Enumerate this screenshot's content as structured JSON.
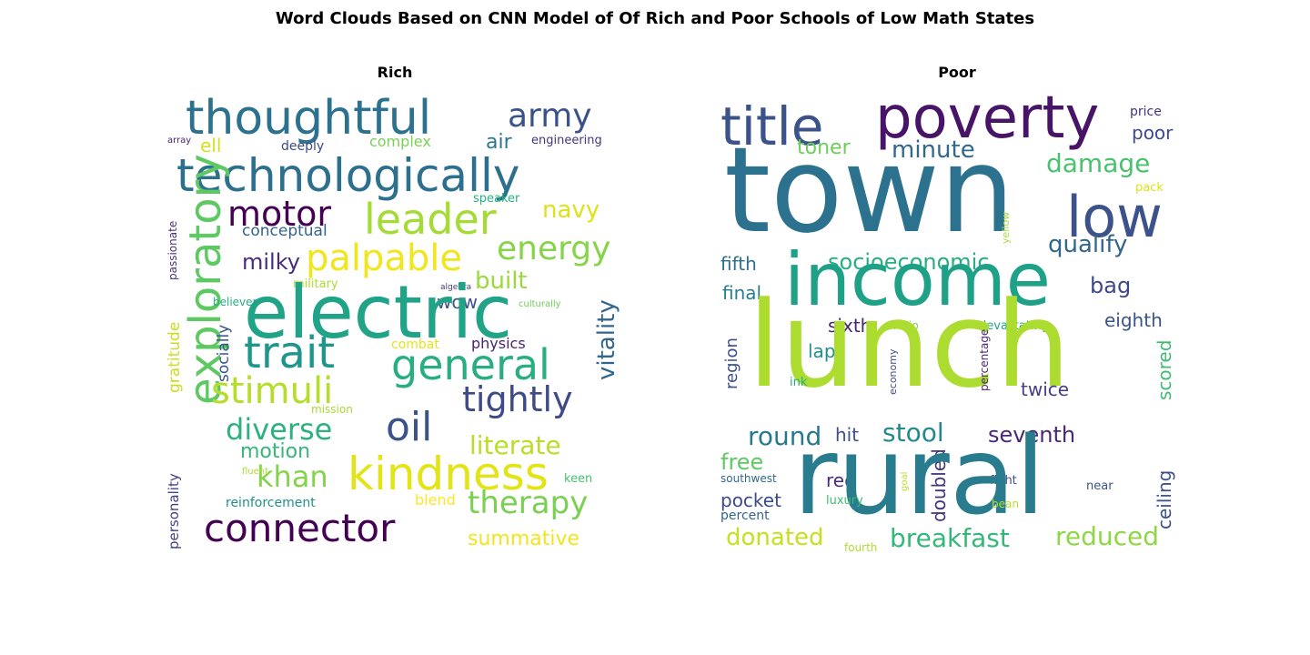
{
  "title": "Word Clouds Based on CNN Model of Of Rich and Poor Schools of Low Math States",
  "panels": [
    {
      "title": "Rich",
      "words": [
        {
          "t": "thoughtful",
          "c": "#2c728e"
        },
        {
          "t": "army",
          "c": "#3b528b"
        },
        {
          "t": "ell",
          "c": "#d2e21b"
        },
        {
          "t": "deeply",
          "c": "#3e4989"
        },
        {
          "t": "complex",
          "c": "#7ad151"
        },
        {
          "t": "air",
          "c": "#2a788e"
        },
        {
          "t": "engineering",
          "c": "#46337e"
        },
        {
          "t": "array",
          "c": "#482878"
        },
        {
          "t": "technologically",
          "c": "#2d708e"
        },
        {
          "t": "passionate",
          "c": "#46327e"
        },
        {
          "t": "speaker",
          "c": "#2ab07f"
        },
        {
          "t": "exploratory",
          "c": "#5ec962"
        },
        {
          "t": "motor",
          "c": "#440154"
        },
        {
          "t": "leader",
          "c": "#a5db36"
        },
        {
          "t": "navy",
          "c": "#dde318"
        },
        {
          "t": "culturally",
          "c": "#6ece58"
        },
        {
          "t": "energy",
          "c": "#86d549"
        },
        {
          "t": "conceptual",
          "c": "#33638d"
        },
        {
          "t": "milky",
          "c": "#472d7b"
        },
        {
          "t": "palpable",
          "c": "#f1e51d"
        },
        {
          "t": "wow",
          "c": "#3b528b"
        },
        {
          "t": "built",
          "c": "#9bd93c"
        },
        {
          "t": "believer",
          "c": "#25ac82"
        },
        {
          "t": "algebra",
          "c": "#443a83"
        },
        {
          "t": "vitality",
          "c": "#31668e"
        },
        {
          "t": "military",
          "c": "#addc30"
        },
        {
          "t": "electric",
          "c": "#20a386"
        },
        {
          "t": "gratitude",
          "c": "#c8e020"
        },
        {
          "t": "socially",
          "c": "#39558c"
        },
        {
          "t": "trait",
          "c": "#1f968b"
        },
        {
          "t": "combat",
          "c": "#e5e419"
        },
        {
          "t": "physics",
          "c": "#482374"
        },
        {
          "t": "general",
          "c": "#28ae80"
        },
        {
          "t": "stimuli",
          "c": "#b5de2b"
        },
        {
          "t": "tightly",
          "c": "#3e4a89"
        },
        {
          "t": "mission",
          "c": "#a8db34"
        },
        {
          "t": "diverse",
          "c": "#2db27d"
        },
        {
          "t": "oil",
          "c": "#3b528b"
        },
        {
          "t": "personality",
          "c": "#424086"
        },
        {
          "t": "literate",
          "c": "#bade28"
        },
        {
          "t": "motion",
          "c": "#35b779"
        },
        {
          "t": "khan",
          "c": "#84d44b"
        },
        {
          "t": "kindness",
          "c": "#e2e418"
        },
        {
          "t": "fluent",
          "c": "#addc30"
        },
        {
          "t": "keen",
          "c": "#4ac16d"
        },
        {
          "t": "reinforcement",
          "c": "#218f8d"
        },
        {
          "t": "blend",
          "c": "#fde725"
        },
        {
          "t": "therapy",
          "c": "#7ad151"
        },
        {
          "t": "connector",
          "c": "#440154"
        },
        {
          "t": "summative",
          "c": "#f1e51d"
        }
      ]
    },
    {
      "title": "Poor",
      "words": [
        {
          "t": "title",
          "c": "#3b528b"
        },
        {
          "t": "poverty",
          "c": "#481467"
        },
        {
          "t": "price",
          "c": "#46337e"
        },
        {
          "t": "poor",
          "c": "#3e4a89"
        },
        {
          "t": "toner",
          "c": "#6ece58"
        },
        {
          "t": "minute",
          "c": "#31688e"
        },
        {
          "t": "damage",
          "c": "#4ac16d"
        },
        {
          "t": "town",
          "c": "#2c728e"
        },
        {
          "t": "pack",
          "c": "#dde318"
        },
        {
          "t": "low",
          "c": "#3b528b"
        },
        {
          "t": "yellow",
          "c": "#a8db34"
        },
        {
          "t": "qualify",
          "c": "#31678e"
        },
        {
          "t": "fifth",
          "c": "#2e6f8e"
        },
        {
          "t": "socioeconomic",
          "c": "#28ae80"
        },
        {
          "t": "income",
          "c": "#1fa187"
        },
        {
          "t": "bag",
          "c": "#3e4989"
        },
        {
          "t": "final",
          "c": "#287d8e"
        },
        {
          "t": "sixth",
          "c": "#482475"
        },
        {
          "t": "ratio",
          "c": "#7ad151"
        },
        {
          "t": "devastating",
          "c": "#22a785"
        },
        {
          "t": "eighth",
          "c": "#3a548c"
        },
        {
          "t": "region",
          "c": "#3d4e8a"
        },
        {
          "t": "lap",
          "c": "#218f8d"
        },
        {
          "t": "lunch",
          "c": "#addc30"
        },
        {
          "t": "percentage",
          "c": "#482878"
        },
        {
          "t": "scored",
          "c": "#3fbc73"
        },
        {
          "t": "economy",
          "c": "#3e4a89"
        },
        {
          "t": "ink",
          "c": "#25ac82"
        },
        {
          "t": "twice",
          "c": "#433e85"
        },
        {
          "t": "round",
          "c": "#2a788e"
        },
        {
          "t": "hit",
          "c": "#3b528b"
        },
        {
          "t": "stool",
          "c": "#23898e"
        },
        {
          "t": "seventh",
          "c": "#482878"
        },
        {
          "t": "free",
          "c": "#5ec962"
        },
        {
          "t": "doubled",
          "c": "#46337e"
        },
        {
          "t": "ceiling",
          "c": "#3b528b"
        },
        {
          "t": "red",
          "c": "#472c7a"
        },
        {
          "t": "goal",
          "c": "#bade28"
        },
        {
          "t": "fight",
          "c": "#3e4989"
        },
        {
          "t": "rural",
          "c": "#287c8e"
        },
        {
          "t": "southwest",
          "c": "#31688e"
        },
        {
          "t": "luxury",
          "c": "#3fbc73"
        },
        {
          "t": "near",
          "c": "#3b528b"
        },
        {
          "t": "pocket",
          "c": "#3e4989"
        },
        {
          "t": "bean",
          "c": "#b5de2b"
        },
        {
          "t": "percent",
          "c": "#33638d"
        },
        {
          "t": "donated",
          "c": "#c8e020"
        },
        {
          "t": "fourth",
          "c": "#addc30"
        },
        {
          "t": "breakfast",
          "c": "#35b779"
        },
        {
          "t": "reduced",
          "c": "#8fd744"
        }
      ]
    }
  ]
}
